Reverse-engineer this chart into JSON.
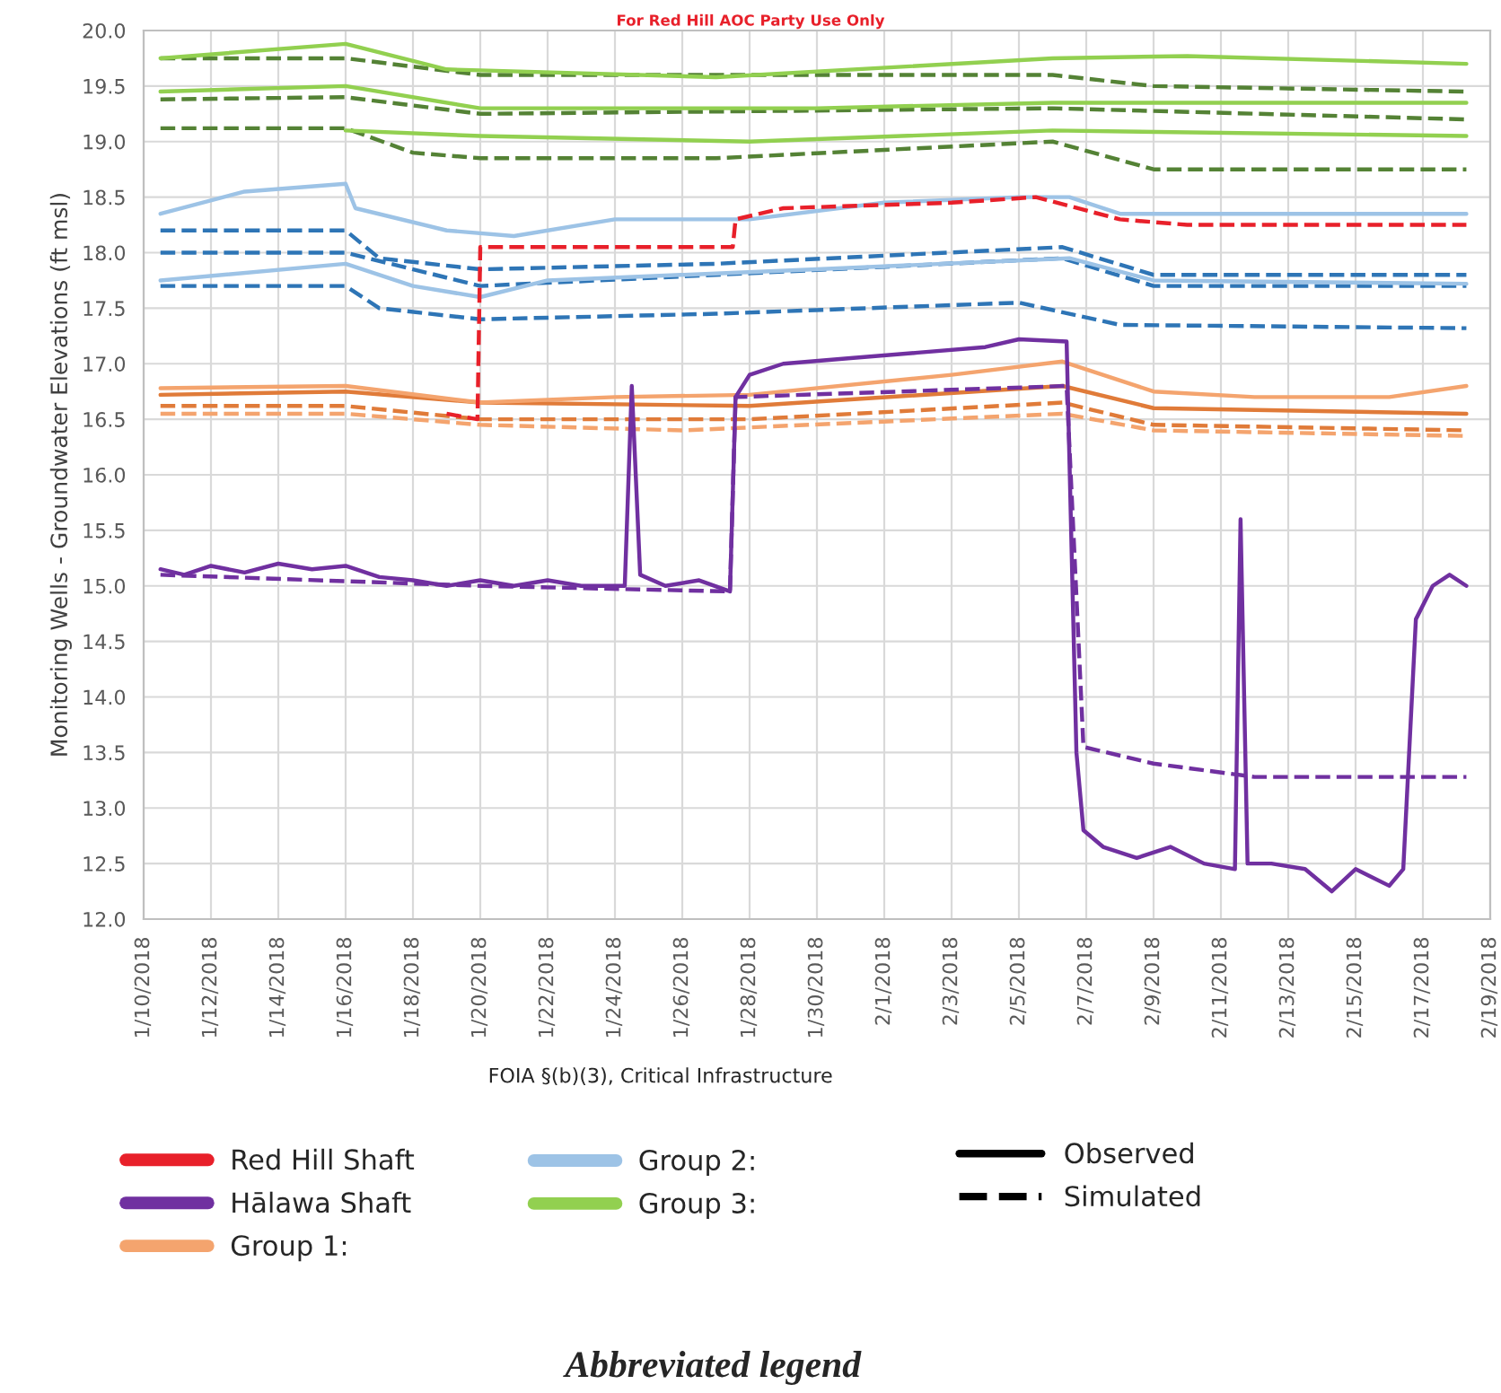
{
  "chart_data": {
    "type": "line",
    "ylabel": "Monitoring Wells - Groundwater Elevations (ft msl)",
    "annotations": [
      "For Red Hill AOC Party Use Only",
      "FOIA §(b)(3), Critical Infrastructure",
      "Observed",
      "Simulated",
      "Abbreviated legend"
    ],
    "xlim": [
      "2018-01-10",
      "2018-02-19"
    ],
    "xticks": [
      {
        "value": "2018-01-10",
        "label": "1/10/2018"
      },
      {
        "value": "2018-01-12",
        "label": "1/12/2018"
      },
      {
        "value": "2018-01-14",
        "label": "1/14/2018"
      },
      {
        "value": "2018-01-16",
        "label": "1/16/2018"
      },
      {
        "value": "2018-01-18",
        "label": "1/18/2018"
      },
      {
        "value": "2018-01-20",
        "label": "1/20/2018"
      },
      {
        "value": "2018-01-22",
        "label": "1/22/2018"
      },
      {
        "value": "2018-01-24",
        "label": "1/24/2018"
      },
      {
        "value": "2018-01-26",
        "label": "1/26/2018"
      },
      {
        "value": "2018-01-28",
        "label": "1/28/2018"
      },
      {
        "value": "2018-01-30",
        "label": "1/30/2018"
      },
      {
        "value": "2018-02-01",
        "label": "2/1/2018"
      },
      {
        "value": "2018-02-03",
        "label": "2/3/2018"
      },
      {
        "value": "2018-02-05",
        "label": "2/5/2018"
      },
      {
        "value": "2018-02-07",
        "label": "2/7/2018"
      },
      {
        "value": "2018-02-09",
        "label": "2/9/2018"
      },
      {
        "value": "2018-02-11",
        "label": "2/11/2018"
      },
      {
        "value": "2018-02-13",
        "label": "2/13/2018"
      },
      {
        "value": "2018-02-15",
        "label": "2/15/2018"
      },
      {
        "value": "2018-02-17",
        "label": "2/17/2018"
      },
      {
        "value": "2018-02-19",
        "label": "2/19/2018"
      }
    ],
    "ylim": [
      12.0,
      20.0
    ],
    "yticks": [
      {
        "value": 12.0,
        "label": "12.0"
      },
      {
        "value": 12.5,
        "label": "12.5"
      },
      {
        "value": 13.0,
        "label": "13.0"
      },
      {
        "value": 13.5,
        "label": "13.5"
      },
      {
        "value": 14.0,
        "label": "14.0"
      },
      {
        "value": 14.5,
        "label": "14.5"
      },
      {
        "value": 15.0,
        "label": "15.0"
      },
      {
        "value": 15.5,
        "label": "15.5"
      },
      {
        "value": 16.0,
        "label": "16.0"
      },
      {
        "value": 16.5,
        "label": "16.5"
      },
      {
        "value": 17.0,
        "label": "17.0"
      },
      {
        "value": 17.5,
        "label": "17.5"
      },
      {
        "value": 18.0,
        "label": "18.0"
      },
      {
        "value": 18.5,
        "label": "18.5"
      },
      {
        "value": 19.0,
        "label": "19.0"
      },
      {
        "value": 19.5,
        "label": "19.5"
      },
      {
        "value": 20.0,
        "label": "20.0"
      }
    ],
    "grid": true,
    "legend": "bottom",
    "series": [
      {
        "name": "Red Hill Shaft",
        "color": "#e8202a",
        "line_style": "dashed",
        "x": [
          "2018-01-19",
          "2018-01-19T22:00",
          "2018-01-20",
          "2018-01-27T12:00",
          "2018-01-27T14:00",
          "2018-01-29",
          "2018-02-03",
          "2018-02-05T12:00",
          "2018-02-08",
          "2018-02-10",
          "2018-02-18T07:00"
        ],
        "values": [
          16.55,
          16.5,
          18.05,
          18.05,
          18.3,
          18.4,
          18.45,
          18.5,
          18.3,
          18.25,
          18.25
        ]
      },
      {
        "name": "Hālawa Shaft",
        "color": "#7030a0",
        "line_style": "solid",
        "x": [
          "2018-01-10T12:00",
          "2018-01-11T05:00",
          "2018-01-12",
          "2018-01-13",
          "2018-01-14",
          "2018-01-15",
          "2018-01-16",
          "2018-01-17",
          "2018-01-18",
          "2018-01-19",
          "2018-01-20",
          "2018-01-21",
          "2018-01-22",
          "2018-01-23",
          "2018-01-24T07:00",
          "2018-01-24T12:00",
          "2018-01-24T18:00",
          "2018-01-25T12:00",
          "2018-01-26T12:00",
          "2018-01-27T10:00",
          "2018-01-27T14:00",
          "2018-01-28",
          "2018-01-29",
          "2018-01-31",
          "2018-02-02",
          "2018-02-04",
          "2018-02-05",
          "2018-02-06T10:00",
          "2018-02-06T17:00",
          "2018-02-06T22:00",
          "2018-02-07T12:00",
          "2018-02-08T12:00",
          "2018-02-09T12:00",
          "2018-02-10T12:00",
          "2018-02-11T10:00",
          "2018-02-11T14:00",
          "2018-02-11T19:00",
          "2018-02-12T12:00",
          "2018-02-13T12:00",
          "2018-02-14T07:00",
          "2018-02-15",
          "2018-02-16",
          "2018-02-16T10:00",
          "2018-02-16T19:00",
          "2018-02-17T07:00",
          "2018-02-17T19:00",
          "2018-02-18T07:00"
        ],
        "values": [
          15.15,
          15.1,
          15.18,
          15.12,
          15.2,
          15.15,
          15.18,
          15.08,
          15.05,
          15.0,
          15.05,
          15.0,
          15.05,
          15.0,
          15.0,
          16.8,
          15.1,
          15.0,
          15.05,
          14.95,
          16.7,
          16.9,
          17.0,
          17.05,
          17.1,
          17.15,
          17.22,
          17.2,
          13.5,
          12.8,
          12.65,
          12.55,
          12.65,
          12.5,
          12.45,
          15.6,
          12.5,
          12.5,
          12.45,
          12.25,
          12.45,
          12.3,
          12.45,
          14.7,
          15.0,
          15.1,
          15.0
        ]
      },
      {
        "color": "#7030a0",
        "line_style": "dashed",
        "x": [
          "2018-01-10T12:00",
          "2018-01-20",
          "2018-01-27T10:00",
          "2018-01-27T14:00",
          "2018-02-06T10:00",
          "2018-02-06T22:00",
          "2018-02-09",
          "2018-02-12",
          "2018-02-18T07:00"
        ],
        "values": [
          15.1,
          15.0,
          14.95,
          16.7,
          16.8,
          13.55,
          13.4,
          13.28,
          13.28
        ]
      },
      {
        "name": "Group 1:",
        "color": "#f4a46e",
        "line_style": "solid",
        "x": [
          "2018-01-10T12:00",
          "2018-01-16",
          "2018-01-20",
          "2018-01-24",
          "2018-01-28",
          "2018-02-03",
          "2018-02-06T07:00",
          "2018-02-09",
          "2018-02-12",
          "2018-02-16",
          "2018-02-18T07:00"
        ],
        "values": [
          16.78,
          16.8,
          16.65,
          16.7,
          16.72,
          16.9,
          17.02,
          16.75,
          16.7,
          16.7,
          16.8
        ]
      },
      {
        "color": "#e07b39",
        "line_style": "solid",
        "x": [
          "2018-01-10T12:00",
          "2018-01-16",
          "2018-01-20",
          "2018-01-28",
          "2018-02-06T07:00",
          "2018-02-09",
          "2018-02-18T07:00"
        ],
        "values": [
          16.72,
          16.75,
          16.65,
          16.62,
          16.8,
          16.6,
          16.55
        ]
      },
      {
        "color": "#e07b39",
        "line_style": "dashed",
        "x": [
          "2018-01-10T12:00",
          "2018-01-16",
          "2018-01-20",
          "2018-01-28",
          "2018-02-06T07:00",
          "2018-02-09",
          "2018-02-18T07:00"
        ],
        "values": [
          16.62,
          16.62,
          16.5,
          16.5,
          16.65,
          16.45,
          16.4
        ]
      },
      {
        "color": "#f4a46e",
        "line_style": "dashed",
        "x": [
          "2018-01-10T12:00",
          "2018-01-16",
          "2018-01-20",
          "2018-01-26",
          "2018-02-06T07:00",
          "2018-02-09",
          "2018-02-18T07:00"
        ],
        "values": [
          16.55,
          16.55,
          16.45,
          16.4,
          16.55,
          16.4,
          16.35
        ]
      },
      {
        "name": "Group 2:",
        "color": "#9dc3e6",
        "line_style": "solid",
        "x": [
          "2018-01-10T12:00",
          "2018-01-13",
          "2018-01-16",
          "2018-01-16T07:00",
          "2018-01-19",
          "2018-01-21",
          "2018-01-24",
          "2018-01-28",
          "2018-02-01",
          "2018-02-05",
          "2018-02-06T12:00",
          "2018-02-08",
          "2018-02-18T07:00"
        ],
        "values": [
          18.35,
          18.55,
          18.62,
          18.4,
          18.2,
          18.15,
          18.3,
          18.3,
          18.45,
          18.5,
          18.5,
          18.35,
          18.35
        ]
      },
      {
        "color": "#9dc3e6",
        "line_style": "solid",
        "x": [
          "2018-01-10T12:00",
          "2018-01-16",
          "2018-01-18",
          "2018-01-20",
          "2018-01-22",
          "2018-01-30",
          "2018-02-06T12:00",
          "2018-02-09",
          "2018-02-18T07:00"
        ],
        "values": [
          17.75,
          17.9,
          17.7,
          17.6,
          17.75,
          17.85,
          17.95,
          17.75,
          17.72
        ]
      },
      {
        "color": "#2e75b6",
        "line_style": "dashed",
        "x": [
          "2018-01-10T12:00",
          "2018-01-16",
          "2018-01-17",
          "2018-01-20",
          "2018-01-27",
          "2018-02-06T07:00",
          "2018-02-09",
          "2018-02-18T07:00"
        ],
        "values": [
          18.2,
          18.2,
          17.95,
          17.85,
          17.9,
          18.05,
          17.8,
          17.8
        ]
      },
      {
        "color": "#2e75b6",
        "line_style": "dashed",
        "x": [
          "2018-01-10T12:00",
          "2018-01-16",
          "2018-01-20",
          "2018-01-27",
          "2018-02-06T07:00",
          "2018-02-09",
          "2018-02-18T07:00"
        ],
        "values": [
          18.0,
          18.0,
          17.7,
          17.8,
          17.95,
          17.7,
          17.7
        ]
      },
      {
        "color": "#2e75b6",
        "line_style": "dashed",
        "x": [
          "2018-01-10T12:00",
          "2018-01-16",
          "2018-01-17",
          "2018-01-20",
          "2018-01-27",
          "2018-02-05",
          "2018-02-08",
          "2018-02-18T07:00"
        ],
        "values": [
          17.7,
          17.7,
          17.5,
          17.4,
          17.45,
          17.55,
          17.35,
          17.32
        ]
      },
      {
        "name": "Group 3:",
        "color": "#92d050",
        "line_style": "solid",
        "x": [
          "2018-01-10T12:00",
          "2018-01-16",
          "2018-01-19",
          "2018-01-27",
          "2018-02-06",
          "2018-02-10",
          "2018-02-18T07:00"
        ],
        "values": [
          19.75,
          19.88,
          19.65,
          19.58,
          19.75,
          19.77,
          19.7
        ]
      },
      {
        "color": "#92d050",
        "line_style": "solid",
        "x": [
          "2018-01-10T12:00",
          "2018-01-16",
          "2018-01-20",
          "2018-01-30",
          "2018-02-06",
          "2018-02-18T07:00"
        ],
        "values": [
          19.45,
          19.5,
          19.3,
          19.3,
          19.35,
          19.35
        ]
      },
      {
        "color": "#92d050",
        "line_style": "solid",
        "x": [
          "2018-01-16",
          "2018-01-20",
          "2018-01-28",
          "2018-02-06",
          "2018-02-18T07:00"
        ],
        "values": [
          19.1,
          19.05,
          19.0,
          19.1,
          19.05
        ]
      },
      {
        "color": "#548235",
        "line_style": "dashed",
        "x": [
          "2018-01-10T12:00",
          "2018-01-16",
          "2018-01-20",
          "2018-02-06",
          "2018-02-09",
          "2018-02-18T07:00"
        ],
        "values": [
          19.75,
          19.75,
          19.6,
          19.6,
          19.5,
          19.45
        ]
      },
      {
        "color": "#548235",
        "line_style": "dashed",
        "x": [
          "2018-01-10T12:00",
          "2018-01-16",
          "2018-01-20",
          "2018-02-06",
          "2018-02-18T07:00"
        ],
        "values": [
          19.38,
          19.4,
          19.25,
          19.3,
          19.2
        ]
      },
      {
        "color": "#548235",
        "line_style": "dashed",
        "x": [
          "2018-01-10T12:00",
          "2018-01-16",
          "2018-01-18",
          "2018-01-20",
          "2018-01-27",
          "2018-02-06",
          "2018-02-09",
          "2018-02-18T07:00"
        ],
        "values": [
          19.12,
          19.12,
          18.9,
          18.85,
          18.85,
          19.0,
          18.75,
          18.75
        ]
      }
    ]
  }
}
